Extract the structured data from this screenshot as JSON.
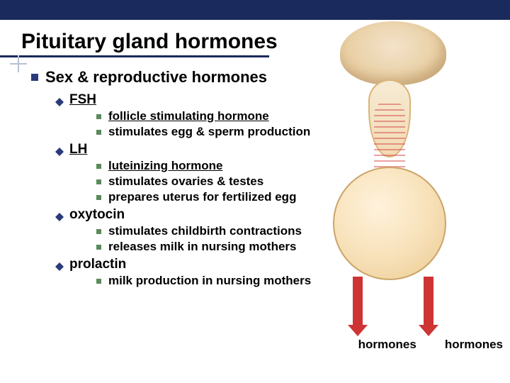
{
  "colors": {
    "header_bar": "#1a2a5c",
    "title_underline": "#1a2a5c",
    "lvl1_bullet": "#2a3a7a",
    "lvl2_bullet": "#2a3a7a",
    "lvl3_bullet": "#5a8a5a",
    "arrow_red": "#cc2a2a",
    "text": "#000000",
    "background": "#ffffff"
  },
  "typography": {
    "title_fontsize": 30,
    "lvl1_fontsize": 22,
    "lvl2_fontsize": 19,
    "lvl3_fontsize": 17,
    "font_family": "Arial",
    "all_bold": true
  },
  "title": "Pituitary gland hormones",
  "lvl1": "Sex & reproductive hormones",
  "sections": [
    {
      "heading": "FSH",
      "underlined": true,
      "items": [
        {
          "text": "follicle stimulating hormone",
          "underlined": true
        },
        {
          "text": "stimulates egg & sperm production",
          "underlined": false
        }
      ]
    },
    {
      "heading": "LH",
      "underlined": true,
      "items": [
        {
          "text": "luteinizing hormone",
          "underlined": true
        },
        {
          "text": "stimulates ovaries & testes",
          "underlined": false
        },
        {
          "text": "prepares uterus for fertilized egg",
          "underlined": false
        }
      ]
    },
    {
      "heading": "oxytocin",
      "underlined": false,
      "items": [
        {
          "text": "stimulates childbirth contractions",
          "underlined": false
        },
        {
          "text": "releases milk in nursing mothers",
          "underlined": false
        }
      ]
    },
    {
      "heading": "prolactin",
      "underlined": false,
      "items": [
        {
          "text": "milk production in nursing mothers",
          "underlined": false
        }
      ]
    }
  ],
  "bottom_labels": {
    "left": "hormones",
    "right": "hormones"
  },
  "illustration": {
    "type": "anatomical-diagram",
    "description": "brain with pituitary gland cross-section, blood vessels, two downward red arrows",
    "brain_color": "#e8cda0",
    "gland_color": "#f7dfb4",
    "outline_color": "#caa060",
    "arrow_color": "#cc2a2a",
    "arrow_count": 2
  }
}
